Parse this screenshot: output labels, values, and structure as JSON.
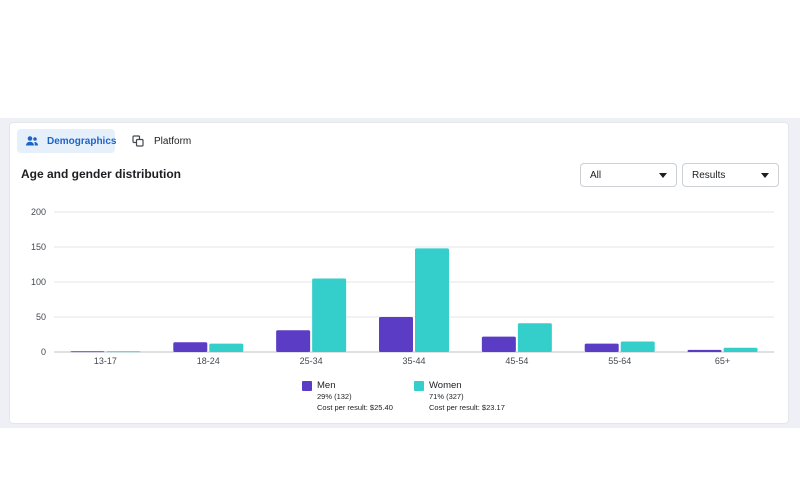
{
  "tabs": [
    {
      "label": "Demographics",
      "active": true,
      "icon": "people-icon"
    },
    {
      "label": "Platform",
      "active": false,
      "icon": "platform-icon"
    }
  ],
  "title": "Age and gender distribution",
  "dropdowns": {
    "filter": {
      "value": "All"
    },
    "metric": {
      "value": "Results"
    }
  },
  "colors": {
    "men": "#5b3cc4",
    "women": "#34cecb",
    "accent": "#1d63c8"
  },
  "legend": {
    "men": {
      "name": "Men",
      "share": "29% (132)",
      "cost": "Cost per result: $25.40"
    },
    "women": {
      "name": "Women",
      "share": "71% (327)",
      "cost": "Cost per result: $23.17"
    }
  },
  "chart_data": {
    "type": "bar",
    "categories": [
      "13-17",
      "18-24",
      "25-34",
      "35-44",
      "45-54",
      "55-64",
      "65+"
    ],
    "series": [
      {
        "name": "Men",
        "values": [
          1,
          14,
          31,
          50,
          22,
          12,
          3
        ]
      },
      {
        "name": "Women",
        "values": [
          1,
          12,
          105,
          148,
          41,
          15,
          6
        ]
      }
    ],
    "yticks": [
      0,
      50,
      100,
      150,
      200
    ],
    "ylim": [
      0,
      200
    ],
    "grid": true,
    "legend_position": "bottom"
  }
}
